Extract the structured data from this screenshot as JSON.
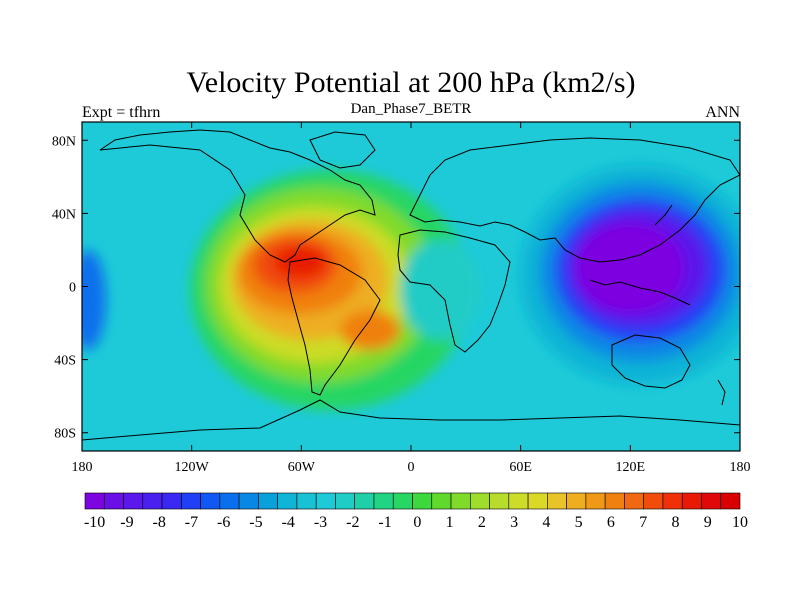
{
  "title": "Velocity Potential at 200 hPa (km2/s)",
  "subtitle": "Dan_Phase7_BETR",
  "left_label": "Expt = tfhrn",
  "right_label": "ANN",
  "map": {
    "projection": "cylindrical-equidistant",
    "lon_range": [
      -180,
      180
    ],
    "lat_range": [
      -90,
      90
    ],
    "lat_ticks": [
      {
        "lat": 80,
        "label": "80N"
      },
      {
        "lat": 40,
        "label": "40N"
      },
      {
        "lat": 0,
        "label": "0"
      },
      {
        "lat": -40,
        "label": "40S"
      },
      {
        "lat": -80,
        "label": "80S"
      }
    ],
    "lon_ticks": [
      {
        "lon": -180,
        "label": "180"
      },
      {
        "lon": -120,
        "label": "120W"
      },
      {
        "lon": -60,
        "label": "60W"
      },
      {
        "lon": 0,
        "label": "0"
      },
      {
        "lon": 60,
        "label": "60E"
      },
      {
        "lon": 120,
        "label": "120E"
      },
      {
        "lon": 180,
        "label": "180"
      }
    ],
    "field_centers": [
      {
        "lon": -60,
        "lat": 12,
        "value": 10,
        "note": "maximum over northern South America"
      },
      {
        "lon": -25,
        "lat": -25,
        "value": 7,
        "note": "secondary maximum south Atlantic"
      },
      {
        "lon": 120,
        "lat": 5,
        "value": -10,
        "note": "minimum over Maritime Continent / west Pacific"
      },
      {
        "lon": 20,
        "lat": 5,
        "value": 0,
        "note": "near-zero over Africa"
      }
    ]
  },
  "colorbar": {
    "min": -10,
    "max": 10,
    "step": 0.5,
    "labels": [
      "-10",
      "-9",
      "-8",
      "-7",
      "-6",
      "-5",
      "-4",
      "-3",
      "-2",
      "-1",
      "0",
      "1",
      "2",
      "3",
      "4",
      "5",
      "6",
      "7",
      "8",
      "9",
      "10"
    ],
    "colors": [
      "#7d05e0",
      "#6a10e6",
      "#5a18eb",
      "#4a20ef",
      "#3a28f3",
      "#2040f5",
      "#1058f3",
      "#0870ec",
      "#0888e4",
      "#0aa0dc",
      "#10b4d6",
      "#18c2d4",
      "#1ecad8",
      "#20ccc6",
      "#1ed0a8",
      "#20d484",
      "#28d664",
      "#3cd83c",
      "#60d82c",
      "#80da2c",
      "#a0dc2c",
      "#b8dc2c",
      "#ccdc28",
      "#dcd828",
      "#e8c428",
      "#eeae20",
      "#f09818",
      "#f08010",
      "#f06810",
      "#f04c0c",
      "#f03008",
      "#e81a06",
      "#e00808",
      "#d80000"
    ]
  }
}
